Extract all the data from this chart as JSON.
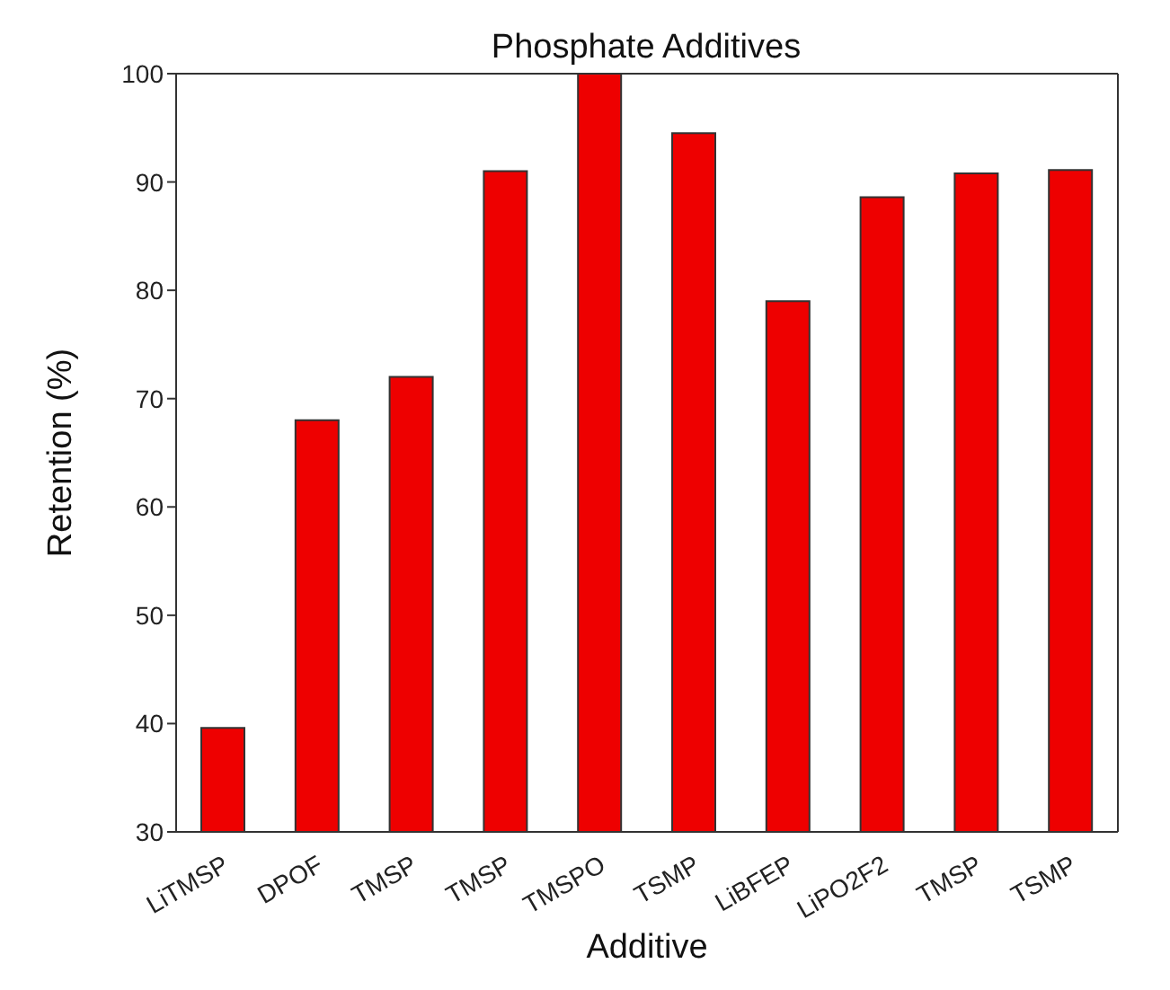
{
  "chart_data": {
    "type": "bar",
    "title": "Phosphate Additives",
    "xlabel": "Additive",
    "ylabel": "Retention (%)",
    "categories": [
      "LiTMSP",
      "DPOF",
      "TMSP",
      "TMSP",
      "TMSPO",
      "TSMP",
      "LiBFEP",
      "LiPO2F2",
      "TMSP",
      "TSMP"
    ],
    "values": [
      39.6,
      68,
      72,
      91,
      100,
      94.5,
      79,
      88.6,
      90.8,
      91.1
    ],
    "color": "#ee0000",
    "ylim": [
      30,
      100
    ],
    "yticks": [
      30,
      40,
      50,
      60,
      70,
      80,
      90,
      100
    ]
  }
}
